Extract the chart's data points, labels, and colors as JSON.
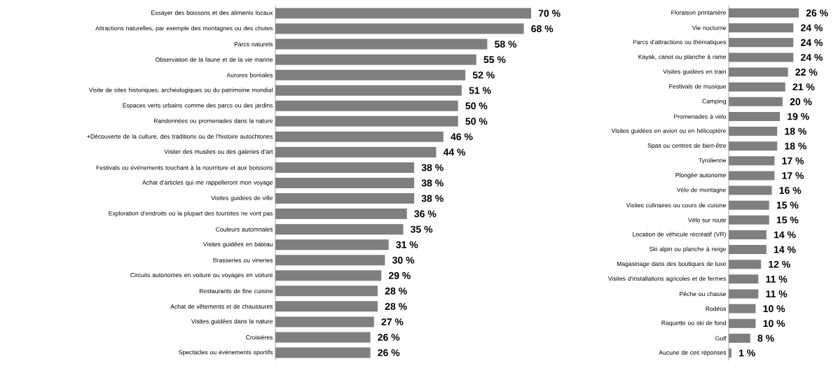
{
  "chart_data": [
    {
      "type": "bar",
      "orientation": "horizontal",
      "color": "#7f7f7f",
      "categories": [
        "Essayer des boissons et des aliments locaux",
        "Attractions naturelles, par exemple des montagnes ou des chutes",
        "Parcs naturels",
        "Observation de la faune et de la vie marine",
        "Aurores boréales",
        "Visite de sites historiques, archéologiques ou du patrimoine mondial",
        "Espaces verts urbains comme des parcs ou des jardins",
        "Randonnées ou promenades dans la nature",
        "+Découverte de la culture, des traditions ou de l’histoire autochtones",
        "Visiter des musées ou des galeries d’art",
        "Festivals ou événements touchant à la nourriture et aux boissons",
        "Achat d’articles qui me rappelleront mon voyage",
        "Visites guidées de ville",
        "Exploration d’endroits où la plupart des touristes ne vont pas",
        "Couleurs automnales",
        "Visites guidées en bateau",
        "Brasseries ou vineries",
        "Circuits autonomes en voiture ou voyages en voiture",
        "Restaurants de fine cuisine",
        "Achat de vêtements et de chaussures",
        "Visites guidées dans la nature",
        "Croisières",
        "Spectacles ou événements sportifs"
      ],
      "values": [
        70,
        68,
        58,
        55,
        52,
        51,
        50,
        50,
        46,
        44,
        38,
        38,
        38,
        36,
        35,
        31,
        30,
        29,
        28,
        28,
        27,
        26,
        26
      ],
      "value_labels": [
        "70 %",
        "68 %",
        "58 %",
        "55 %",
        "52 %",
        "51 %",
        "50 %",
        "50 %",
        "46 %",
        "44 %",
        "38 %",
        "38 %",
        "38 %",
        "36 %",
        "35 %",
        "31 %",
        "30 %",
        "29 %",
        "28 %",
        "28 %",
        "27 %",
        "26 %",
        "26 %"
      ]
    },
    {
      "type": "bar",
      "orientation": "horizontal",
      "color": "#7f7f7f",
      "categories": [
        "Floraison printanière",
        "Vie nocturne",
        "Parcs d’attractions ou thématiques",
        "Kayak, canot ou planche à rame",
        "Visites guidées en train",
        "Festivals de musique",
        "Camping",
        "Promenades à vélo",
        "Visites guidées en avion ou en hélicoptère",
        "Spas ou centres de bien-être",
        "Tyrolienne",
        "Plongée autonome",
        "Vélo de montagne",
        "Visites culinaires ou cours de cuisine",
        "Vélo sur route",
        "Location de véhicule récréatif (VR)",
        "Ski alpin ou planche à neige",
        "Magasinage dans des boutiques de luxe",
        "Visites d’installations agricoles et de fermes",
        "Pêche ou chasse",
        "Rodéos",
        "Raquette ou ski de fond",
        "Golf",
        "Aucune de ces réponses"
      ],
      "values": [
        26,
        24,
        24,
        24,
        22,
        21,
        20,
        19,
        18,
        18,
        17,
        17,
        16,
        15,
        15,
        14,
        14,
        12,
        11,
        11,
        10,
        10,
        8,
        1
      ],
      "value_labels": [
        "26 %",
        "24 %",
        "24 %",
        "24 %",
        "22 %",
        "21 %",
        "20 %",
        "19 %",
        "18 %",
        "18 %",
        "17 %",
        "17 %",
        "16 %",
        "15 %",
        "15 %",
        "14 %",
        "14 %",
        "12 %",
        "11 %",
        "11 %",
        "10 %",
        "10 %",
        "8 %",
        "1 %"
      ]
    }
  ]
}
